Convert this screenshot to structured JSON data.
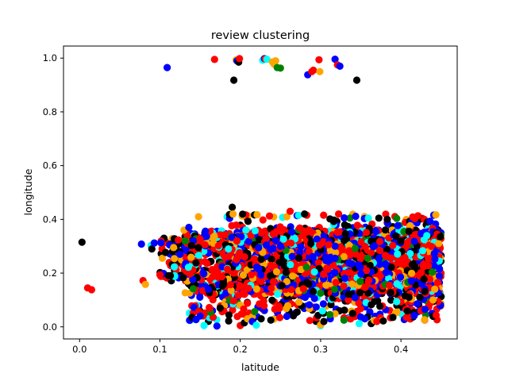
{
  "chart_data": {
    "type": "scatter",
    "title": "review clustering",
    "xlabel": "latitude",
    "ylabel": "longitude",
    "xlim": [
      -0.02,
      0.47
    ],
    "ylim": [
      -0.045,
      1.045
    ],
    "xticks": [
      0.0,
      0.1,
      0.2,
      0.3,
      0.4
    ],
    "xtick_labels": [
      "0.0",
      "0.1",
      "0.2",
      "0.3",
      "0.4"
    ],
    "yticks": [
      0.0,
      0.2,
      0.4,
      0.6,
      0.8,
      1.0
    ],
    "ytick_labels": [
      "0.0",
      "0.2",
      "0.4",
      "0.6",
      "0.8",
      "1.0"
    ],
    "grid": false,
    "legend": false,
    "colors": [
      "#0000ff",
      "#ff0000",
      "#000000",
      "#ffa500",
      "#00ffff",
      "#008000"
    ],
    "points": [
      [
        0.003,
        0.315,
        2
      ],
      [
        0.01,
        0.145,
        1
      ],
      [
        0.015,
        0.138,
        1
      ],
      [
        0.077,
        0.308,
        0
      ],
      [
        0.079,
        0.172,
        1
      ],
      [
        0.082,
        0.158,
        3
      ],
      [
        0.089,
        0.303,
        4
      ],
      [
        0.09,
        0.29,
        2
      ],
      [
        0.093,
        0.312,
        0
      ],
      [
        0.1,
        0.194,
        1
      ],
      [
        0.103,
        0.255,
        3
      ],
      [
        0.107,
        0.277,
        2
      ],
      [
        0.109,
        0.965,
        0
      ],
      [
        0.112,
        0.305,
        0
      ],
      [
        0.117,
        0.295,
        3
      ],
      [
        0.118,
        0.254,
        3
      ],
      [
        0.125,
        0.27,
        0
      ],
      [
        0.13,
        0.36,
        3
      ],
      [
        0.136,
        0.37,
        0
      ],
      [
        0.14,
        0.035,
        2
      ],
      [
        0.145,
        0.027,
        0
      ],
      [
        0.148,
        0.41,
        3
      ],
      [
        0.15,
        0.04,
        0
      ],
      [
        0.155,
        0.005,
        4
      ],
      [
        0.162,
        0.07,
        1
      ],
      [
        0.168,
        0.995,
        1
      ],
      [
        0.171,
        0.003,
        0
      ],
      [
        0.175,
        0.07,
        2
      ],
      [
        0.186,
        0.044,
        2
      ],
      [
        0.19,
        0.445,
        2
      ],
      [
        0.191,
        0.42,
        3
      ],
      [
        0.192,
        0.918,
        2
      ],
      [
        0.195,
        0.993,
        3
      ],
      [
        0.196,
        0.99,
        0
      ],
      [
        0.198,
        0.985,
        2
      ],
      [
        0.199,
        0.998,
        1
      ],
      [
        0.2,
        0.005,
        1
      ],
      [
        0.205,
        0.015,
        2
      ],
      [
        0.209,
        0.03,
        3
      ],
      [
        0.215,
        0.02,
        0
      ],
      [
        0.22,
        0.006,
        4
      ],
      [
        0.226,
        0.03,
        2
      ],
      [
        0.228,
        0.992,
        4
      ],
      [
        0.23,
        0.998,
        0
      ],
      [
        0.231,
        0.997,
        1
      ],
      [
        0.233,
        0.996,
        4
      ],
      [
        0.238,
        0.025,
        2
      ],
      [
        0.24,
        0.986,
        3
      ],
      [
        0.242,
        0.978,
        3
      ],
      [
        0.244,
        0.99,
        3
      ],
      [
        0.246,
        0.965,
        5
      ],
      [
        0.25,
        0.963,
        5
      ],
      [
        0.25,
        0.3,
        0
      ],
      [
        0.258,
        0.41,
        3
      ],
      [
        0.262,
        0.43,
        1
      ],
      [
        0.274,
        0.368,
        1
      ],
      [
        0.28,
        0.42,
        2
      ],
      [
        0.284,
        0.938,
        0
      ],
      [
        0.289,
        0.95,
        1
      ],
      [
        0.291,
        0.955,
        1
      ],
      [
        0.298,
        0.994,
        1
      ],
      [
        0.299,
        0.95,
        3
      ],
      [
        0.3,
        0.004,
        4
      ],
      [
        0.3,
        0.008,
        3
      ],
      [
        0.304,
        0.02,
        2
      ],
      [
        0.318,
        0.996,
        0
      ],
      [
        0.321,
        0.975,
        1
      ],
      [
        0.324,
        0.97,
        0
      ],
      [
        0.345,
        0.918,
        2
      ],
      [
        0.348,
        0.012,
        4
      ],
      [
        0.355,
        0.03,
        0
      ],
      [
        0.363,
        0.012,
        2
      ],
      [
        0.367,
        0.024,
        3
      ],
      [
        0.37,
        0.02,
        1
      ],
      [
        0.378,
        0.022,
        2
      ],
      [
        0.383,
        0.4,
        2
      ],
      [
        0.39,
        0.035,
        2
      ],
      [
        0.395,
        0.16,
        4
      ],
      [
        0.41,
        0.11,
        2
      ],
      [
        0.425,
        0.06,
        1
      ],
      [
        0.43,
        0.065,
        0
      ],
      [
        0.437,
        0.09,
        1
      ],
      [
        0.44,
        0.1,
        3
      ],
      [
        0.442,
        0.14,
        3
      ],
      [
        0.445,
        0.345,
        1
      ],
      [
        0.447,
        0.31,
        3
      ],
      [
        0.449,
        0.335,
        2
      ]
    ],
    "cluster_note": "Dense band of several thousand overlapping points spanning latitude 0.13-0.45 and longitude 0.0-0.44"
  }
}
